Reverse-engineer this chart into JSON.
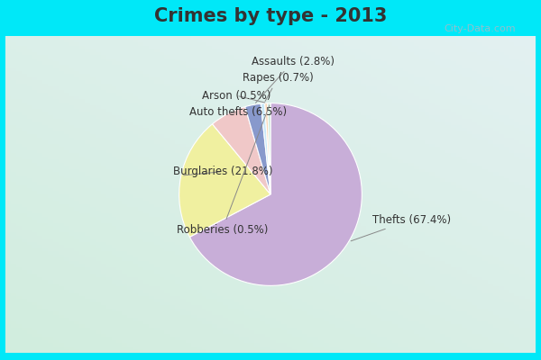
{
  "title": "Crimes by type - 2013",
  "slices": [
    {
      "label": "Thefts (67.4%)",
      "value": 67.4,
      "color": "#c8aed8"
    },
    {
      "label": "Burglaries (21.8%)",
      "value": 21.8,
      "color": "#f0f0a0"
    },
    {
      "label": "Auto thefts (6.5%)",
      "value": 6.5,
      "color": "#f0c8c8"
    },
    {
      "label": "Assaults (2.8%)",
      "value": 2.8,
      "color": "#8899cc"
    },
    {
      "label": "Rapes (0.7%)",
      "value": 0.7,
      "color": "#c8e8f8"
    },
    {
      "label": "Arson (0.5%)",
      "value": 0.5,
      "color": "#f8d8b8"
    },
    {
      "label": "Robberies (0.5%)",
      "value": 0.5,
      "color": "#c8e8d8"
    }
  ],
  "bg_color_outer": "#00e8f8",
  "bg_color_inner_top": "#d0ede0",
  "bg_color_inner_bot": "#e8f0f8",
  "title_fontsize": 15,
  "title_color": "#333333",
  "label_fontsize": 8.5,
  "watermark": "City-Data.com",
  "watermark_color": "#a0bbc8"
}
